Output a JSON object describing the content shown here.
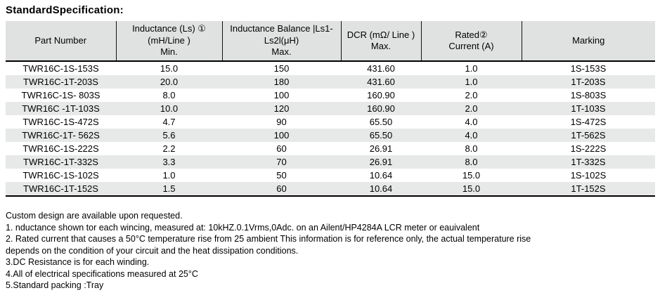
{
  "title": "StandardSpecification:",
  "table": {
    "columns": [
      {
        "id": "part-number",
        "lines": [
          "Part Number"
        ]
      },
      {
        "id": "inductance",
        "lines": [
          "Inductance (Ls) ①",
          "(mH/Line )",
          "Min."
        ]
      },
      {
        "id": "inductance-balance",
        "lines": [
          "Inductance Balance |Ls1-",
          "Ls2l(μH)",
          "Max."
        ]
      },
      {
        "id": "dcr",
        "lines": [
          "DCR (mΩ/ Line )",
          "Max."
        ]
      },
      {
        "id": "rated-current",
        "lines": [
          "Rated②",
          "Current (A)"
        ]
      },
      {
        "id": "marking",
        "lines": [
          "Marking"
        ]
      }
    ],
    "rows": [
      [
        "TWR16C-1S-153S",
        "15.0",
        "150",
        "431.60",
        "1.0",
        "1S-153S"
      ],
      [
        "TWR16C-1T-203S",
        "20.0",
        "180",
        "431.60",
        "1.0",
        "1T-203S"
      ],
      [
        "TWR16C-1S- 803S",
        "8.0",
        "100",
        "160.90",
        "2.0",
        "1S-803S"
      ],
      [
        "TWR16C -1T-103S",
        "10.0",
        "120",
        "160.90",
        "2.0",
        "1T-103S"
      ],
      [
        "TWR16C-1S-472S",
        "4.7",
        "90",
        "65.50",
        "4.0",
        "1S-472S"
      ],
      [
        "TWR16C-1T- 562S",
        "5.6",
        "100",
        "65.50",
        "4.0",
        "1T-562S"
      ],
      [
        "TWR16C-1S-222S",
        "2.2",
        "60",
        "26.91",
        "8.0",
        "1S-222S"
      ],
      [
        "TWR16C-1T-332S",
        "3.3",
        "70",
        "26.91",
        "8.0",
        "1T-332S"
      ],
      [
        "TWR16C-1S-102S",
        "1.0",
        "50",
        "10.64",
        "15.0",
        "1S-102S"
      ],
      [
        "TWR16C-1T-152S",
        "1.5",
        "60",
        "10.64",
        "15.0",
        "1T-152S"
      ]
    ]
  },
  "notes": [
    "Custom design are available upon requested.",
    "1. nductance shown tor each wincing, measured at: 10kHZ.0.1Vrms,0Adc. on an Ailent/HP4284A LCR meter or eauivalent",
    "2. Rated current that causes a 50°C temperature rise from 25 ambient This information is for reference only, the actual temperature rise depends on the condition of your circuit and the heat dissipation conditions.",
    "3.DC Resistance is for each winding.",
    "4.All of electrical specifications measured at 25°C",
    "5.Standard packing :Tray"
  ],
  "colors": {
    "header_bg": "#e0e1e1",
    "row_stripe_bg": "#e7e8e8",
    "border": "#000000",
    "text": "#000000"
  }
}
